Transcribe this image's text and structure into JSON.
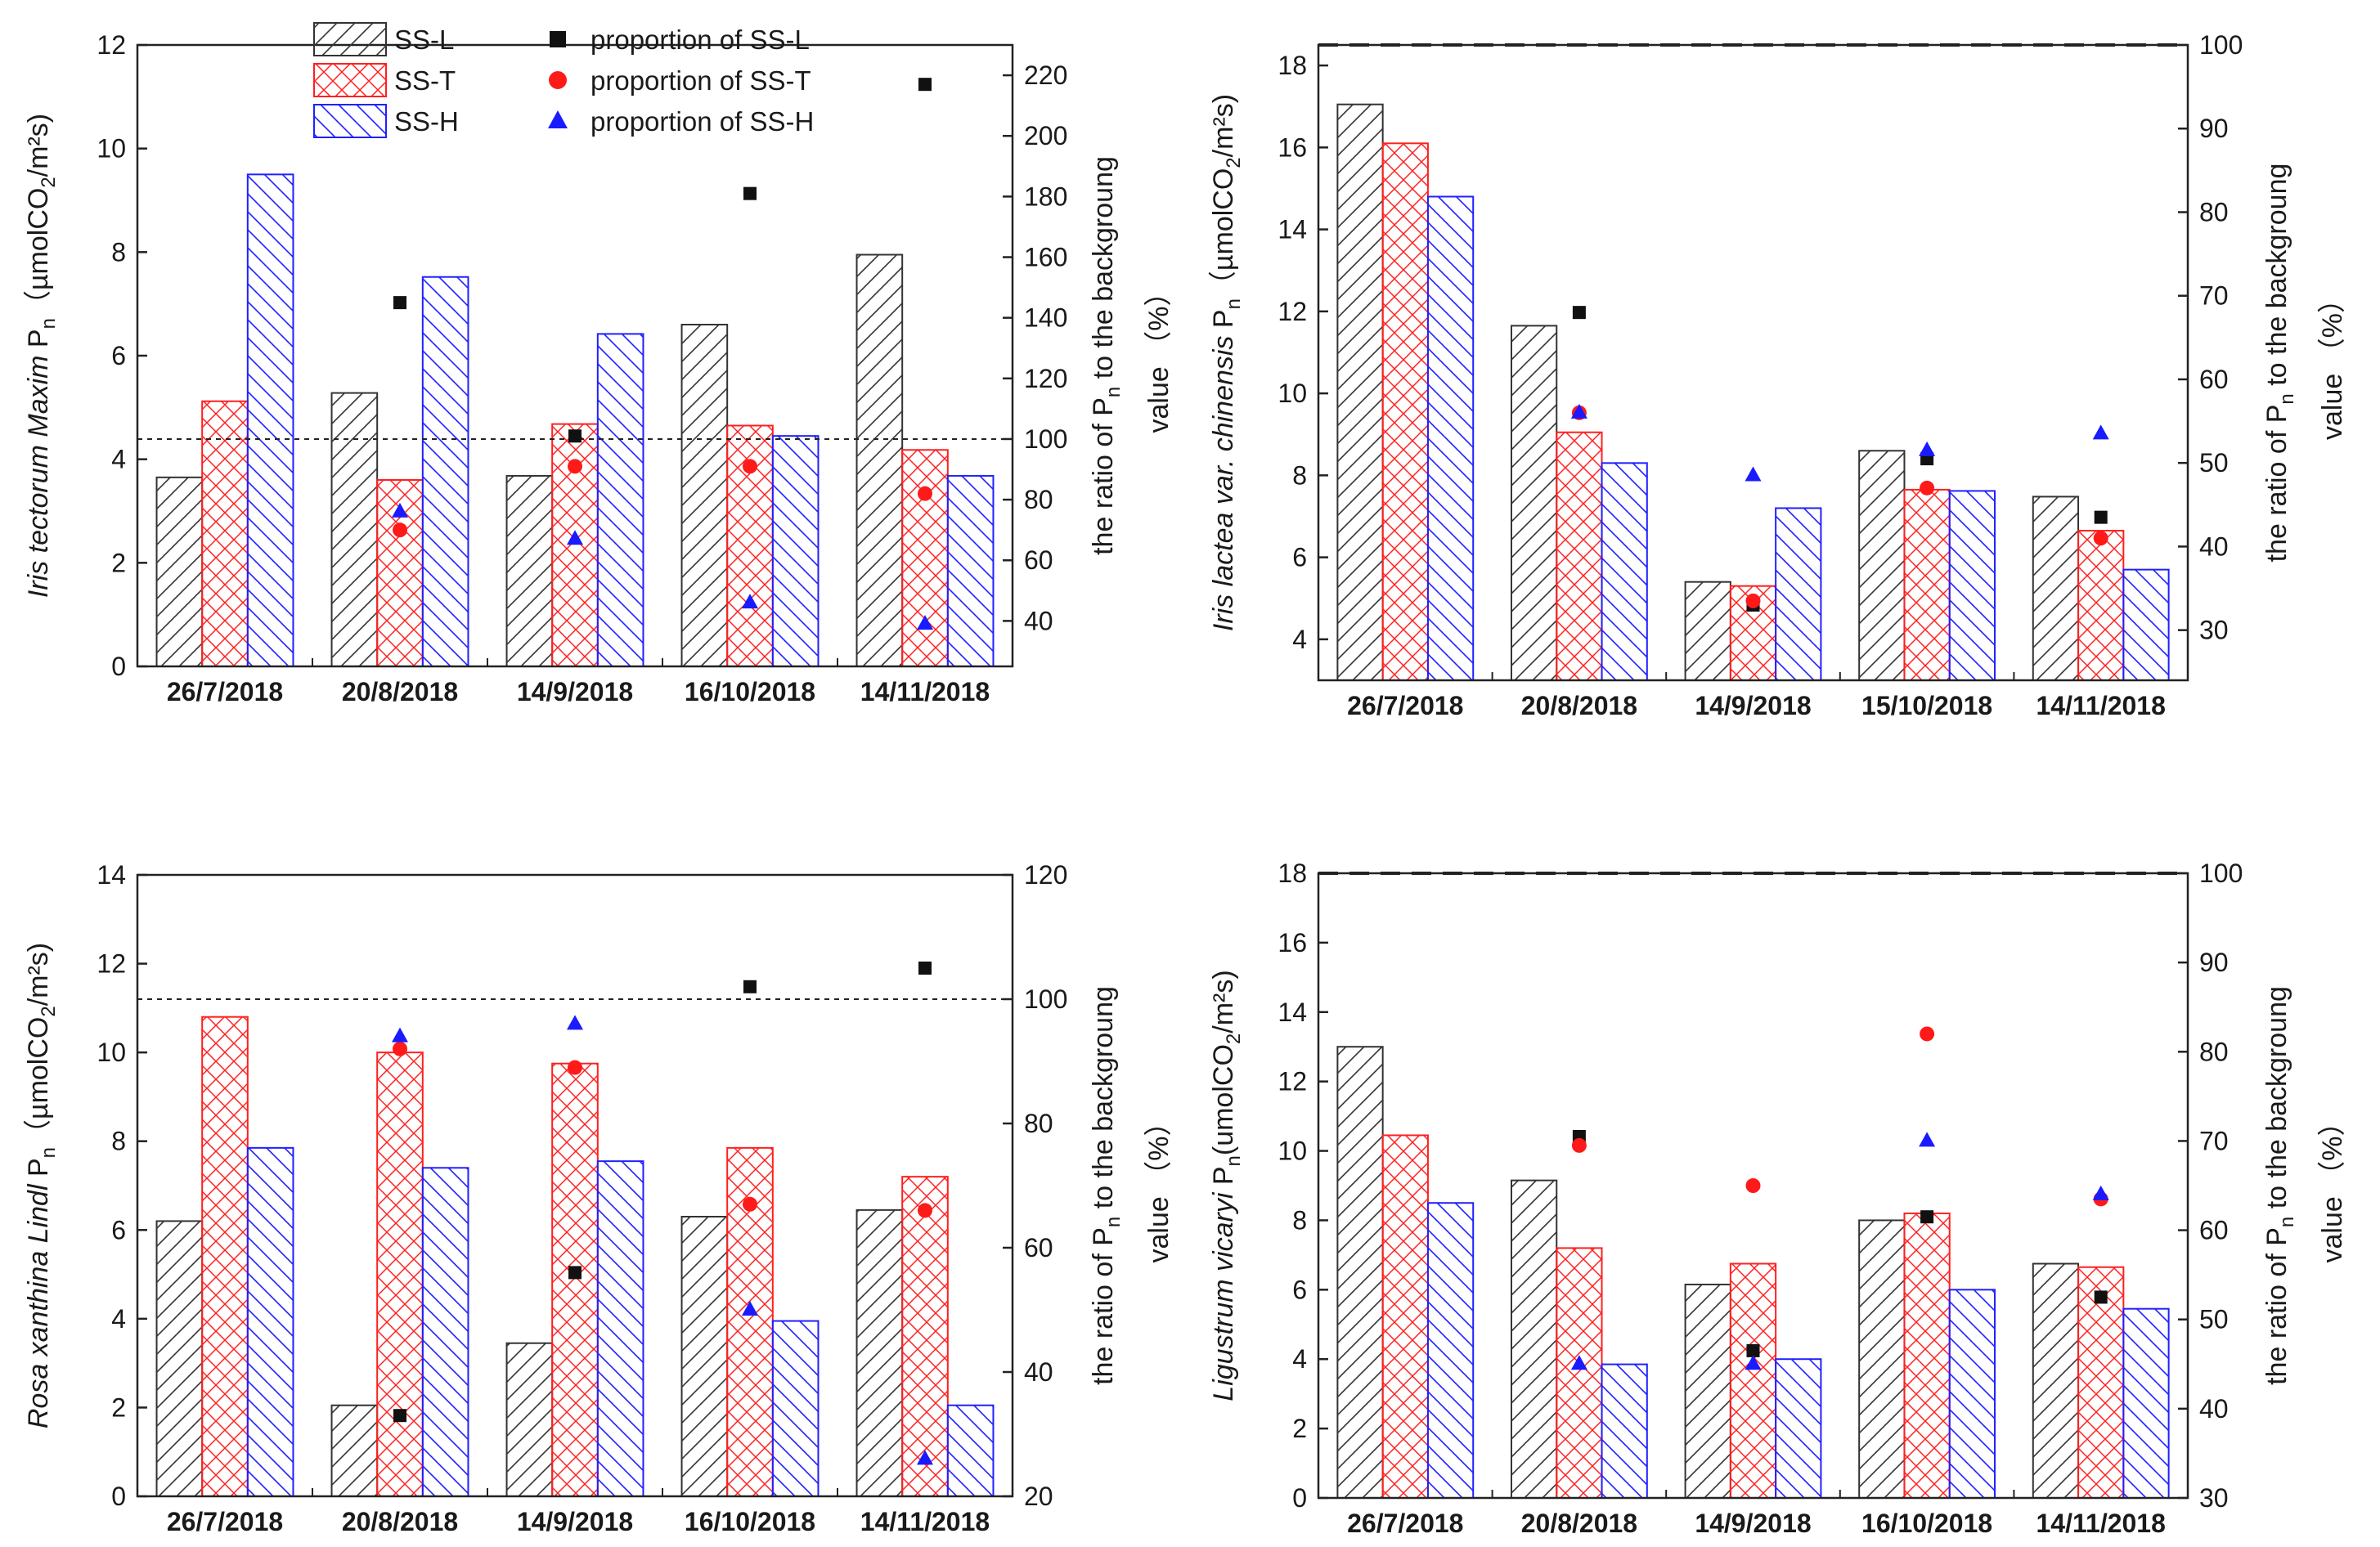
{
  "legend": {
    "bars": [
      {
        "key": "L",
        "label": "SS-L"
      },
      {
        "key": "T",
        "label": "SS-T"
      },
      {
        "key": "H",
        "label": "SS-H"
      }
    ],
    "markers": [
      {
        "key": "L",
        "label": "proportion of SS-L"
      },
      {
        "key": "T",
        "label": "proportion of SS-T"
      },
      {
        "key": "H",
        "label": "proportion of SS-H"
      }
    ]
  },
  "colors": {
    "L": "#333333",
    "T": "#ff2020",
    "H": "#2020ff"
  },
  "chart_data": [
    {
      "type": "bar",
      "species": "Iris tectorum Maxim",
      "ylabel_prefix": " P",
      "ylabel_sub": "n",
      "ylabel_unit": "（µmolCO",
      "ylabel_unit_sub": "2",
      "ylabel_unit_end": "/m²s)",
      "y2label_line1_a": "the ratio of P",
      "y2label_line1_sub": "n",
      "y2label_line1_b": " to the backgroung",
      "y2label_line2": "value （%）",
      "categories": [
        "26/7/2018",
        "20/8/2018",
        "14/9/2018",
        "16/10/2018",
        "14/11/2018"
      ],
      "ylim": [
        0,
        12
      ],
      "yticks": [
        0,
        2,
        4,
        6,
        8,
        10,
        12
      ],
      "y2lim": [
        25,
        230
      ],
      "y2ticks": [
        40,
        60,
        80,
        100,
        120,
        140,
        160,
        180,
        200,
        220
      ],
      "series": [
        {
          "name": "SS-L",
          "values": [
            3.65,
            5.28,
            3.68,
            6.6,
            7.95
          ]
        },
        {
          "name": "SS-T",
          "values": [
            5.12,
            3.6,
            4.68,
            4.65,
            4.18
          ]
        },
        {
          "name": "SS-H",
          "values": [
            9.5,
            7.52,
            6.42,
            4.45,
            3.68
          ]
        }
      ],
      "proportions": [
        {
          "name": "proportion of SS-L",
          "values": [
            null,
            145,
            101,
            181,
            217
          ]
        },
        {
          "name": "proportion of SS-T",
          "values": [
            null,
            70,
            91,
            91,
            82
          ]
        },
        {
          "name": "proportion of SS-H",
          "values": [
            null,
            76,
            67,
            46,
            39
          ]
        }
      ],
      "reference_line": 100
    },
    {
      "type": "bar",
      "species": "Iris lactea var. chinensis",
      "ylabel_prefix": " P",
      "ylabel_sub": "n",
      "ylabel_unit": "（µmolCO",
      "ylabel_unit_sub": "2",
      "ylabel_unit_end": "/m²s)",
      "y2label_line1_a": "the ratio of P",
      "y2label_line1_sub": "n",
      "y2label_line1_b": " to the backgroung",
      "y2label_line2": "value （%）",
      "categories": [
        "26/7/2018",
        "20/8/2018",
        "14/9/2018",
        "15/10/2018",
        "14/11/2018"
      ],
      "ylim": [
        3,
        18.5
      ],
      "yticks": [
        4,
        6,
        8,
        10,
        12,
        14,
        16,
        18
      ],
      "y2lim": [
        24,
        100
      ],
      "y2ticks": [
        30,
        40,
        50,
        60,
        70,
        80,
        90,
        100
      ],
      "series": [
        {
          "name": "SS-L",
          "values": [
            17.05,
            11.65,
            5.4,
            8.6,
            7.48
          ]
        },
        {
          "name": "SS-T",
          "values": [
            16.1,
            9.05,
            5.3,
            7.65,
            6.65
          ]
        },
        {
          "name": "SS-H",
          "values": [
            14.8,
            8.3,
            7.2,
            7.62,
            5.7
          ]
        }
      ],
      "proportions": [
        {
          "name": "proportion of SS-L",
          "values": [
            null,
            68,
            33,
            50.5,
            43.5
          ]
        },
        {
          "name": "proportion of SS-T",
          "values": [
            null,
            56,
            33.5,
            47,
            41
          ]
        },
        {
          "name": "proportion of SS-H",
          "values": [
            null,
            56,
            48.5,
            51.5,
            53.5
          ]
        }
      ],
      "reference_line": 100
    },
    {
      "type": "bar",
      "species": "Rosa xanthina Lindl",
      "ylabel_prefix": " P",
      "ylabel_sub": "n",
      "ylabel_unit": "（µmolCO",
      "ylabel_unit_sub": "2",
      "ylabel_unit_end": "/m²s)",
      "y2label_line1_a": "the ratio of P",
      "y2label_line1_sub": "n",
      "y2label_line1_b": " to the backgroung",
      "y2label_line2": "value （%）",
      "categories": [
        "26/7/2018",
        "20/8/2018",
        "14/9/2018",
        "16/10/2018",
        "14/11/2018"
      ],
      "ylim": [
        0,
        14
      ],
      "yticks": [
        0,
        2,
        4,
        6,
        8,
        10,
        12,
        14
      ],
      "y2lim": [
        20,
        120
      ],
      "y2ticks": [
        20,
        40,
        60,
        80,
        100,
        120
      ],
      "series": [
        {
          "name": "SS-L",
          "values": [
            6.2,
            2.05,
            3.45,
            6.3,
            6.45
          ]
        },
        {
          "name": "SS-T",
          "values": [
            10.8,
            10.0,
            9.75,
            7.85,
            7.2
          ]
        },
        {
          "name": "SS-H",
          "values": [
            7.85,
            7.4,
            7.55,
            3.95,
            2.05
          ]
        }
      ],
      "proportions": [
        {
          "name": "proportion of SS-L",
          "values": [
            null,
            33,
            56,
            102,
            105
          ]
        },
        {
          "name": "proportion of SS-T",
          "values": [
            null,
            92,
            89,
            67,
            66
          ]
        },
        {
          "name": "proportion of SS-H",
          "values": [
            null,
            94,
            96,
            50,
            26
          ]
        }
      ],
      "reference_line": 100
    },
    {
      "type": "bar",
      "species": "Ligustrum vicaryi",
      "ylabel_prefix": " P",
      "ylabel_sub": "n",
      "ylabel_unit": "(umolCO",
      "ylabel_unit_sub": "2",
      "ylabel_unit_end": "/m²s)",
      "y2label_line1_a": "the ratio of P",
      "y2label_line1_sub": "n",
      "y2label_line1_b": " to the backgroung",
      "y2label_line2": "value （%）",
      "categories": [
        "26/7/2018",
        "20/8/2018",
        "14/9/2018",
        "16/10/2018",
        "14/11/2018"
      ],
      "ylim": [
        0,
        18
      ],
      "yticks": [
        0,
        2,
        4,
        6,
        8,
        10,
        12,
        14,
        16,
        18
      ],
      "y2lim": [
        30,
        100
      ],
      "y2ticks": [
        30,
        40,
        50,
        60,
        70,
        80,
        90,
        100
      ],
      "series": [
        {
          "name": "SS-L",
          "values": [
            13.0,
            9.15,
            6.15,
            8.0,
            6.75
          ]
        },
        {
          "name": "SS-T",
          "values": [
            10.45,
            7.2,
            6.75,
            8.2,
            6.65
          ]
        },
        {
          "name": "SS-H",
          "values": [
            8.5,
            3.85,
            4.0,
            6.0,
            5.45
          ]
        }
      ],
      "proportions": [
        {
          "name": "proportion of SS-L",
          "values": [
            null,
            70.5,
            46.5,
            61.5,
            52.5
          ]
        },
        {
          "name": "proportion of SS-T",
          "values": [
            null,
            69.5,
            65,
            82,
            63.5
          ]
        },
        {
          "name": "proportion of SS-H",
          "values": [
            null,
            45,
            45,
            70,
            64
          ]
        }
      ],
      "reference_line": 100
    }
  ]
}
